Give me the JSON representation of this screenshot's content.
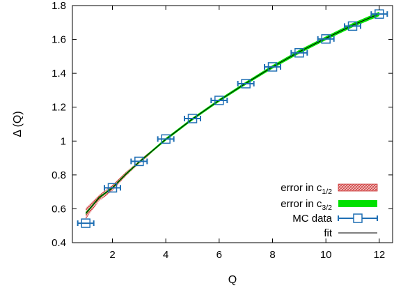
{
  "chart_data": {
    "type": "scatter",
    "xlabel": "Q",
    "ylabel": "Δ (Q)",
    "xlim": [
      0.5,
      12.5
    ],
    "ylim": [
      0.4,
      1.8
    ],
    "grid": false,
    "legend_placement": "bottom-right",
    "x_ticks": [
      "2",
      "4",
      "6",
      "8",
      "10",
      "12"
    ],
    "y_ticks": [
      "0.4",
      "0.6",
      "0.8",
      "1",
      "1.2",
      "1.4",
      "1.6",
      "1.8"
    ],
    "series": [
      {
        "name": "error in c",
        "name_sub": "1/2",
        "kind": "band",
        "color": "#cc3333",
        "x": [
          1,
          1.5,
          2,
          2.5,
          3,
          4,
          5,
          6,
          7,
          8,
          9,
          10,
          11,
          12
        ],
        "y_low": [
          0.54,
          0.646,
          0.705,
          0.792,
          0.865,
          1.005,
          1.125,
          1.235,
          1.336,
          1.434,
          1.523,
          1.603,
          1.68,
          1.747
        ],
        "y_high": [
          0.605,
          0.682,
          0.741,
          0.816,
          0.885,
          1.015,
          1.135,
          1.245,
          1.346,
          1.442,
          1.531,
          1.611,
          1.688,
          1.757
        ]
      },
      {
        "name": "error in c",
        "name_sub": "3/2",
        "kind": "band",
        "color": "#00e000",
        "x": [
          1,
          1.5,
          2,
          2.5,
          3,
          4,
          5,
          6,
          7,
          8,
          9,
          10,
          11,
          12
        ],
        "y_low": [
          0.565,
          0.66,
          0.718,
          0.798,
          0.87,
          1.002,
          1.122,
          1.232,
          1.332,
          1.428,
          1.516,
          1.596,
          1.672,
          1.738
        ],
        "y_high": [
          0.58,
          0.672,
          0.73,
          0.81,
          0.882,
          1.018,
          1.138,
          1.248,
          1.35,
          1.448,
          1.538,
          1.618,
          1.696,
          1.764
        ]
      },
      {
        "name": "MC data",
        "kind": "points",
        "color": "#1f6fb4",
        "x": [
          1,
          2,
          3,
          4,
          5,
          6,
          7,
          8,
          9,
          10,
          11,
          12
        ],
        "y": [
          0.515,
          0.724,
          0.88,
          1.012,
          1.133,
          1.24,
          1.339,
          1.438,
          1.521,
          1.603,
          1.679,
          1.75
        ],
        "xerr": 0.3
      },
      {
        "name": "fit",
        "kind": "line",
        "color": "#000000",
        "x": [
          1,
          1.5,
          2,
          2.5,
          3,
          4,
          5,
          6,
          7,
          8,
          9,
          10,
          11,
          12
        ],
        "y": [
          0.572,
          0.666,
          0.724,
          0.804,
          0.876,
          1.01,
          1.13,
          1.24,
          1.341,
          1.438,
          1.527,
          1.607,
          1.684,
          1.752
        ]
      }
    ]
  }
}
